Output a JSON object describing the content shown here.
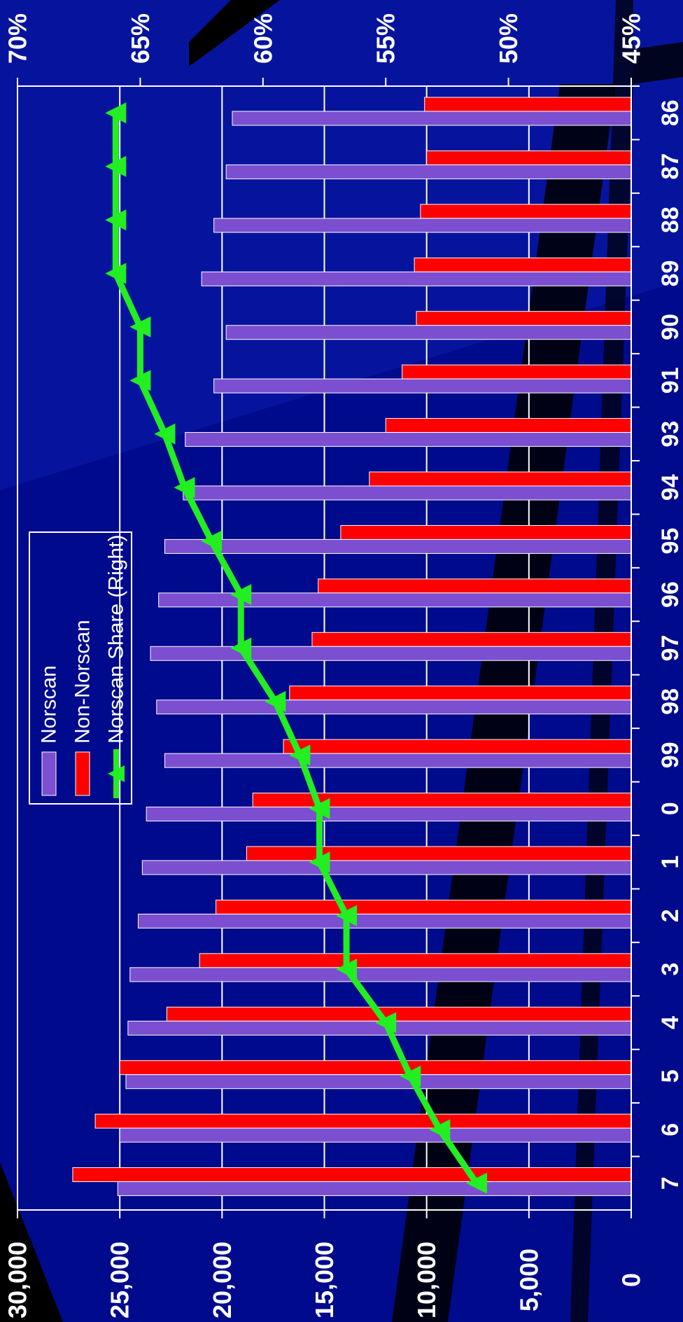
{
  "chart_data": {
    "type": "bar",
    "orientation": "rotated-90-clockwise",
    "categories": [
      "86",
      "87",
      "88",
      "89",
      "90",
      "91",
      "93",
      "94",
      "95",
      "96",
      "97",
      "98",
      "99",
      "0",
      "1",
      "2",
      "3",
      "4",
      "5",
      "6",
      "7"
    ],
    "series": [
      {
        "name": "Norscan",
        "kind": "bar",
        "axis": "left",
        "color": "#7b4fd0",
        "values": [
          19500,
          19800,
          20400,
          21000,
          19800,
          20400,
          21800,
          21900,
          22800,
          23100,
          23500,
          23200,
          22800,
          23700,
          23900,
          24100,
          24500,
          24600,
          24700,
          25000,
          25100
        ]
      },
      {
        "name": "Non-Norscan",
        "kind": "bar",
        "axis": "left",
        "color": "#ff0000",
        "values": [
          10100,
          10000,
          10300,
          10600,
          10500,
          11200,
          12000,
          12800,
          14200,
          15300,
          15600,
          16700,
          17000,
          18500,
          18800,
          20300,
          21100,
          22700,
          25000,
          26200,
          27300
        ]
      },
      {
        "name": "Norscan Share (Right)",
        "kind": "line",
        "axis": "right",
        "color": "#22ee22",
        "values": [
          66.0,
          66.0,
          66.0,
          66.0,
          65.0,
          65.0,
          64.0,
          63.2,
          62.1,
          60.9,
          60.9,
          59.5,
          58.5,
          57.7,
          57.7,
          56.6,
          56.6,
          55.0,
          54.0,
          52.8,
          51.3
        ]
      }
    ],
    "left_axis": {
      "ticks": [
        "0",
        "5,000",
        "10,000",
        "15,000",
        "20,000",
        "25,000",
        "30,000"
      ],
      "range": [
        0,
        30000
      ]
    },
    "right_axis": {
      "ticks": [
        "45%",
        "50%",
        "55%",
        "60%",
        "65%",
        "70%"
      ],
      "range": [
        45,
        70
      ]
    },
    "grid": true,
    "legend": {
      "placement": "top-left",
      "entries": [
        "Norscan",
        "Non-Norscan",
        "Norscan Share (Right)"
      ]
    },
    "colors": {
      "background": "#000a8c",
      "plot_border": "#ffffff",
      "gridline": "#ffffff",
      "text": "#ffffff",
      "stripe": "#000000"
    }
  }
}
